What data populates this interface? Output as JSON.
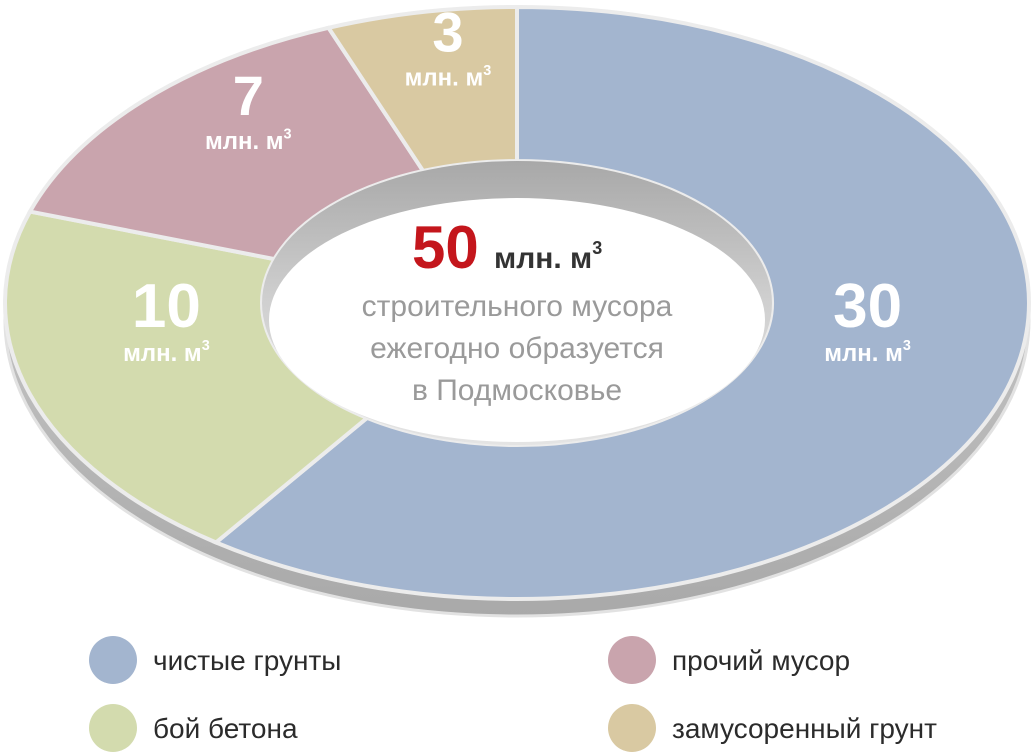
{
  "chart_data": {
    "type": "pie",
    "donut": true,
    "categories": [
      "чистые грунты",
      "бой бетона",
      "прочий мусор",
      "замусоренный грунт"
    ],
    "values": [
      30,
      10,
      7,
      3
    ],
    "colors": [
      "#a3b5cf",
      "#d3dbae",
      "#c9a4ad",
      "#d9c9a2"
    ],
    "unit": "млн. м",
    "unit_power": "3",
    "total": 50,
    "description": [
      "строительного мусора",
      "ежегодно образуется",
      "в Подмосковье"
    ]
  }
}
